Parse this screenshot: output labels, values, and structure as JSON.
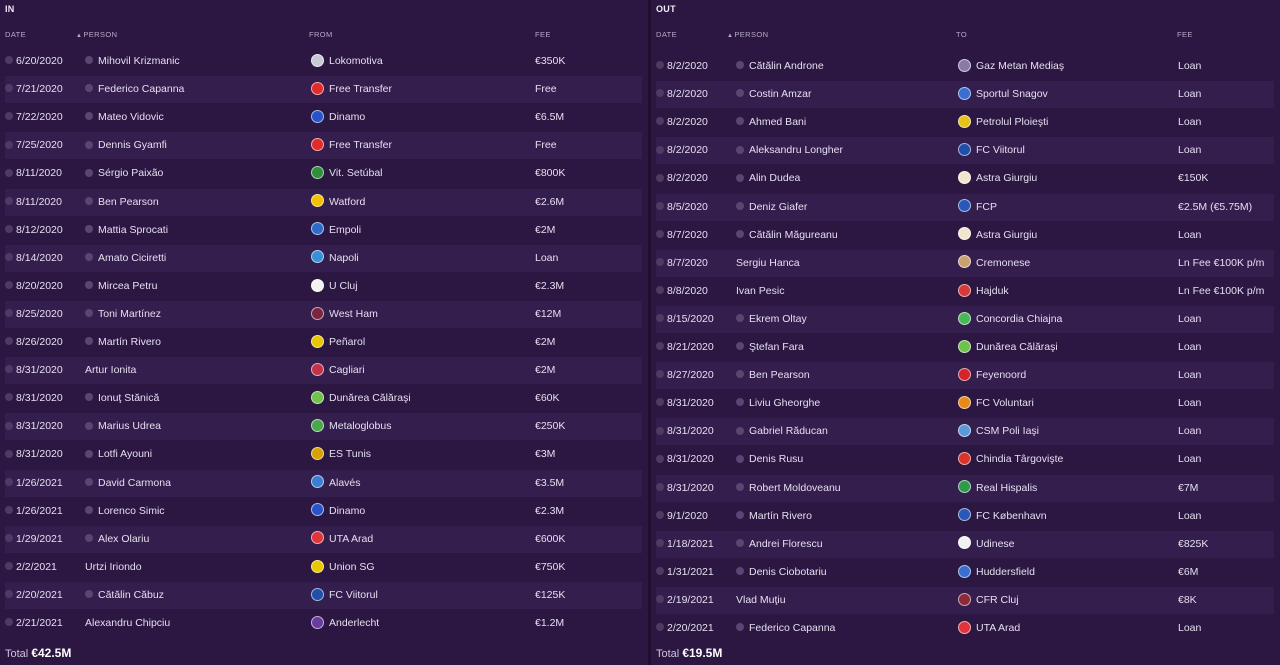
{
  "in": {
    "title": "IN",
    "headers": {
      "date": "DATE",
      "person": "PERSON",
      "from": "FROM",
      "fee": "FEE"
    },
    "rows": [
      {
        "date": "6/20/2020",
        "person": "Mihovil Krizmanic",
        "club": "Lokomotiva",
        "fee": "€350K",
        "dot": true,
        "badge": "#c9c9d6"
      },
      {
        "date": "7/21/2020",
        "person": "Federico Capanna",
        "club": "Free Transfer",
        "fee": "Free",
        "dot": true,
        "badge": "#e02b2b"
      },
      {
        "date": "7/22/2020",
        "person": "Mateo Vidovic",
        "club": "Dinamo",
        "fee": "€6.5M",
        "dot": true,
        "badge": "#2754c7"
      },
      {
        "date": "7/25/2020",
        "person": "Dennis Gyamfi",
        "club": "Free Transfer",
        "fee": "Free",
        "dot": true,
        "badge": "#e02b2b"
      },
      {
        "date": "8/11/2020",
        "person": "Sérgio Paixão",
        "club": "Vit. Setúbal",
        "fee": "€800K",
        "dot": true,
        "badge": "#2f8f3a"
      },
      {
        "date": "8/11/2020",
        "person": "Ben Pearson",
        "club": "Watford",
        "fee": "€2.6M",
        "dot": true,
        "badge": "#f2c200"
      },
      {
        "date": "8/12/2020",
        "person": "Mattia Sprocati",
        "club": "Empoli",
        "fee": "€2M",
        "dot": true,
        "badge": "#2e6bc9"
      },
      {
        "date": "8/14/2020",
        "person": "Amato Ciciretti",
        "club": "Napoli",
        "fee": "Loan",
        "dot": true,
        "badge": "#3a8fd8"
      },
      {
        "date": "8/20/2020",
        "person": "Mircea Petru",
        "club": "U Cluj",
        "fee": "€2.3M",
        "dot": true,
        "badge": "#f2f2f2"
      },
      {
        "date": "8/25/2020",
        "person": "Toni Martínez",
        "club": "West Ham",
        "fee": "€12M",
        "dot": true,
        "badge": "#7a2640"
      },
      {
        "date": "8/26/2020",
        "person": "Martín Rivero",
        "club": "Peñarol",
        "fee": "€2M",
        "dot": true,
        "badge": "#e8c700"
      },
      {
        "date": "8/31/2020",
        "person": "Artur Ionita",
        "club": "Cagliari",
        "fee": "€2M",
        "dot": false,
        "badge": "#c0334a"
      },
      {
        "date": "8/31/2020",
        "person": "Ionuţ Stănică",
        "club": "Dunărea Călăraşi",
        "fee": "€60K",
        "dot": true,
        "badge": "#6fc24a"
      },
      {
        "date": "8/31/2020",
        "person": "Marius Udrea",
        "club": "Metaloglobus",
        "fee": "€250K",
        "dot": true,
        "badge": "#4aa84a"
      },
      {
        "date": "8/31/2020",
        "person": "Lotfi Ayouni",
        "club": "ES Tunis",
        "fee": "€3M",
        "dot": true,
        "badge": "#d8a000"
      },
      {
        "date": "1/26/2021",
        "person": "David Carmona",
        "club": "Alavés",
        "fee": "€3.5M",
        "dot": true,
        "badge": "#3c7fd0"
      },
      {
        "date": "1/26/2021",
        "person": "Lorenco Simic",
        "club": "Dinamo",
        "fee": "€2.3M",
        "dot": true,
        "badge": "#2754c7"
      },
      {
        "date": "1/29/2021",
        "person": "Alex Olariu",
        "club": "UTA Arad",
        "fee": "€600K",
        "dot": true,
        "badge": "#e0353a"
      },
      {
        "date": "2/2/2021",
        "person": "Urtzi Iriondo",
        "club": "Union SG",
        "fee": "€750K",
        "dot": false,
        "badge": "#e8c900"
      },
      {
        "date": "2/20/2021",
        "person": "Cătălin Căbuz",
        "club": "FC Viitorul",
        "fee": "€125K",
        "dot": true,
        "badge": "#1f4fa8"
      },
      {
        "date": "2/21/2021",
        "person": "Alexandru Chipciu",
        "club": "Anderlecht",
        "fee": "€1.2M",
        "dot": false,
        "badge": "#6a3ca0"
      }
    ],
    "total_label": "Total",
    "total_value": "€42.5M"
  },
  "out": {
    "title": "OUT",
    "headers": {
      "date": "DATE",
      "person": "PERSON",
      "to": "TO",
      "fee": "FEE"
    },
    "rows": [
      {
        "date": "8/2/2020",
        "person": "Cătălin Androne",
        "club": "Gaz Metan Mediaş",
        "fee": "Loan",
        "dot": true,
        "badge": "#8a7aa6"
      },
      {
        "date": "8/2/2020",
        "person": "Costin Amzar",
        "club": "Sportul Snagov",
        "fee": "Loan",
        "dot": true,
        "badge": "#3a6fd0"
      },
      {
        "date": "8/2/2020",
        "person": "Ahmed Bani",
        "club": "Petrolul Ploieşti",
        "fee": "Loan",
        "dot": true,
        "badge": "#e6c21a"
      },
      {
        "date": "8/2/2020",
        "person": "Aleksandru Longher",
        "club": "FC Viitorul",
        "fee": "Loan",
        "dot": true,
        "badge": "#1f4fa8"
      },
      {
        "date": "8/2/2020",
        "person": "Alin Dudea",
        "club": "Astra Giurgiu",
        "fee": "€150K",
        "dot": true,
        "badge": "#f0e6d0"
      },
      {
        "date": "8/5/2020",
        "person": "Deniz Giafer",
        "club": "FCP",
        "fee": "€2.5M (€5.75M)",
        "dot": true,
        "badge": "#2a57b8"
      },
      {
        "date": "8/7/2020",
        "person": "Cătălin Măgureanu",
        "club": "Astra Giurgiu",
        "fee": "Loan",
        "dot": true,
        "badge": "#f0e6d0"
      },
      {
        "date": "8/7/2020",
        "person": "Sergiu Hanca",
        "club": "Cremonese",
        "fee": "Ln Fee €100K p/m",
        "dot": false,
        "badge": "#c9a070"
      },
      {
        "date": "8/8/2020",
        "person": "Ivan Pesic",
        "club": "Hajduk",
        "fee": "Ln Fee €100K p/m",
        "dot": false,
        "badge": "#d63a3a"
      },
      {
        "date": "8/15/2020",
        "person": "Ekrem Oltay",
        "club": "Concordia Chiajna",
        "fee": "Loan",
        "dot": true,
        "badge": "#4ab85a"
      },
      {
        "date": "8/21/2020",
        "person": "Ştefan Fara",
        "club": "Dunărea Călăraşi",
        "fee": "Loan",
        "dot": true,
        "badge": "#6fc24a"
      },
      {
        "date": "8/27/2020",
        "person": "Ben Pearson",
        "club": "Feyenoord",
        "fee": "Loan",
        "dot": true,
        "badge": "#d6252a"
      },
      {
        "date": "8/31/2020",
        "person": "Liviu Gheorghe",
        "club": "FC Voluntari",
        "fee": "Loan",
        "dot": true,
        "badge": "#e88a1a"
      },
      {
        "date": "8/31/2020",
        "person": "Gabriel Răducan",
        "club": "CSM Poli Iaşi",
        "fee": "Loan",
        "dot": true,
        "badge": "#5a9ad8"
      },
      {
        "date": "8/31/2020",
        "person": "Denis Rusu",
        "club": "Chindia Târgovişte",
        "fee": "Loan",
        "dot": true,
        "badge": "#d8342a"
      },
      {
        "date": "8/31/2020",
        "person": "Robert Moldoveanu",
        "club": "Real Hispalis",
        "fee": "€7M",
        "dot": true,
        "badge": "#2f9a4a"
      },
      {
        "date": "9/1/2020",
        "person": "Martín Rivero",
        "club": "FC København",
        "fee": "Loan",
        "dot": true,
        "badge": "#2a57b8"
      },
      {
        "date": "1/18/2021",
        "person": "Andrei Florescu",
        "club": "Udinese",
        "fee": "€825K",
        "dot": true,
        "badge": "#f2f2f2"
      },
      {
        "date": "1/31/2021",
        "person": "Denis Ciobotariu",
        "club": "Huddersfield",
        "fee": "€6M",
        "dot": true,
        "badge": "#3a6fd0"
      },
      {
        "date": "2/19/2021",
        "person": "Vlad Muţiu",
        "club": "CFR Cluj",
        "fee": "€8K",
        "dot": false,
        "badge": "#8a2a3a"
      },
      {
        "date": "2/20/2021",
        "person": "Federico Capanna",
        "club": "UTA Arad",
        "fee": "Loan",
        "dot": true,
        "badge": "#e0353a"
      }
    ],
    "total_label": "Total",
    "total_value": "€19.5M"
  }
}
